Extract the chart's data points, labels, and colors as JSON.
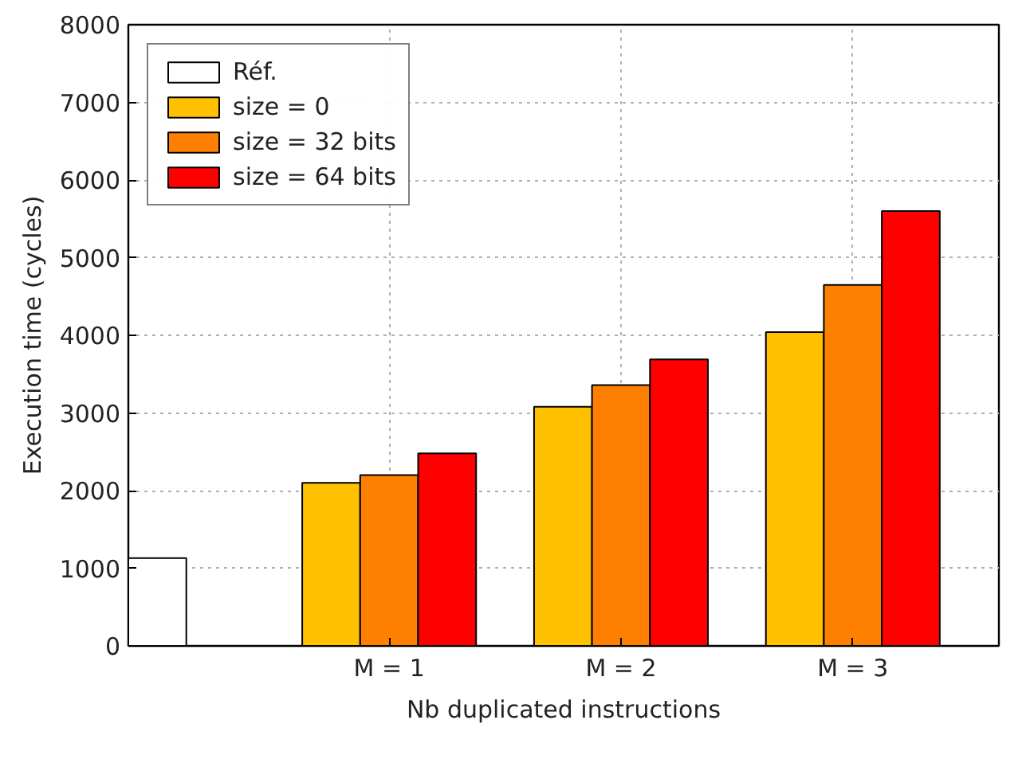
{
  "chart_data": {
    "type": "bar",
    "xlabel": "Nb duplicated instructions",
    "ylabel": "Execution time (cycles)",
    "categories": [
      null,
      "M = 1",
      "M = 2",
      "M = 3"
    ],
    "series": [
      {
        "name": "Réf.",
        "color": "#ffffff",
        "values": [
          1130,
          null,
          null,
          null
        ]
      },
      {
        "name": "size = 0",
        "color": "#ffc000",
        "values": [
          null,
          2100,
          3080,
          4040
        ]
      },
      {
        "name": "size = 32 bits",
        "color": "#ff8000",
        "values": [
          null,
          2200,
          3360,
          4650
        ]
      },
      {
        "name": "size = 64 bits",
        "color": "#ff0000",
        "values": [
          null,
          2480,
          3690,
          5600
        ]
      }
    ],
    "ylim": [
      0,
      8000
    ],
    "yticks": [
      0,
      1000,
      2000,
      3000,
      4000,
      5000,
      6000,
      7000,
      8000
    ],
    "grid": true,
    "legend": "top left"
  }
}
